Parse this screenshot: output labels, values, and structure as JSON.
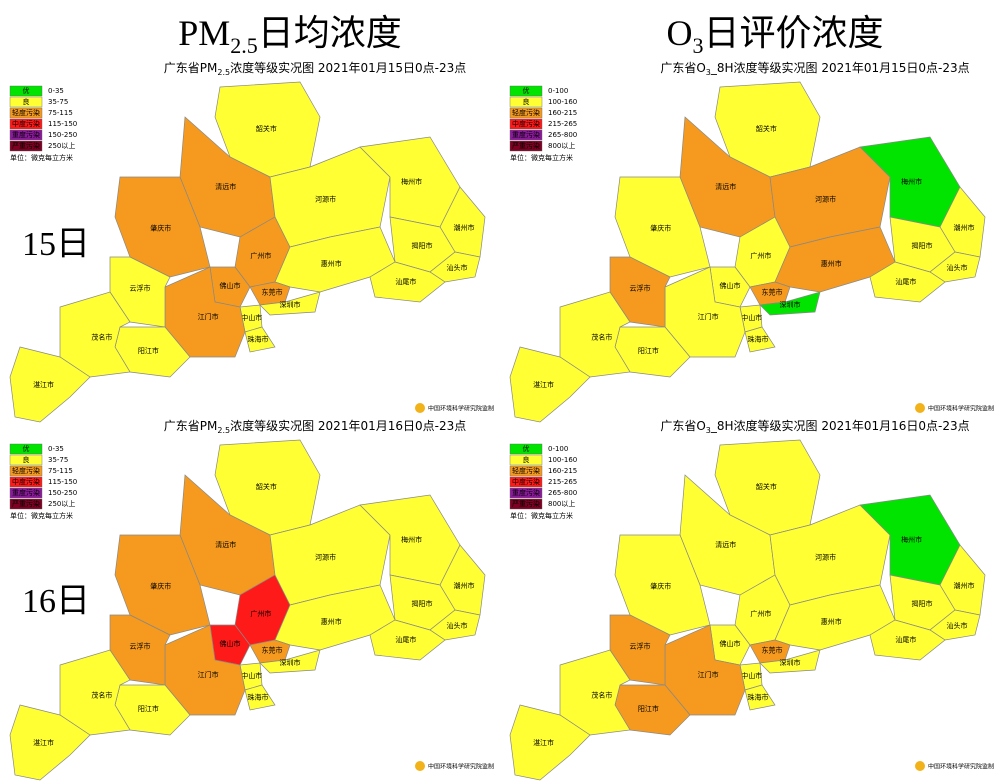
{
  "header": {
    "pm_title": [
      "PM",
      "2.5",
      "日均浓度"
    ],
    "o3_title": [
      "O",
      "3",
      "日评价浓度"
    ]
  },
  "row_labels": [
    "15日",
    "16日"
  ],
  "legend": {
    "levels": [
      {
        "name": "优",
        "color": "#00e400"
      },
      {
        "name": "良",
        "color": "#ffff33"
      },
      {
        "name": "轻度污染",
        "color": "#f59a1e"
      },
      {
        "name": "中度污染",
        "color": "#ff1a1a"
      },
      {
        "name": "重度污染",
        "color": "#8a1a9a"
      },
      {
        "name": "严重污染",
        "color": "#7e0023"
      }
    ],
    "unit": "单位：微克每立方米"
  },
  "cities": [
    "韶关市",
    "清远市",
    "肇庆市",
    "广州市",
    "佛山市",
    "河源市",
    "梅州市",
    "潮州市",
    "揭阳市",
    "汕头市",
    "惠州市",
    "汕尾市",
    "东莞市",
    "深圳市",
    "中山市",
    "珠海市",
    "江门市",
    "云浮市",
    "阳江市",
    "茂名市",
    "湛江市"
  ],
  "credit": "中国环境科学研究院监制",
  "maps": [
    {
      "title": [
        "广东省PM",
        "2.5",
        "浓度等级实况图  2021年01月15日0点-23点"
      ],
      "ranges": [
        "0-35",
        "35-75",
        "75-115",
        "115-150",
        "150-250",
        "250以上"
      ],
      "levels": [
        1,
        2,
        2,
        2,
        2,
        1,
        1,
        1,
        1,
        1,
        1,
        1,
        2,
        1,
        1,
        1,
        2,
        1,
        1,
        1,
        1
      ]
    },
    {
      "title": [
        "广东省O",
        "3",
        "_8H浓度等级实况图  2021年01月15日0点-23点"
      ],
      "ranges": [
        "0-100",
        "100-160",
        "160-215",
        "215-265",
        "265-800",
        "800以上"
      ],
      "levels": [
        1,
        2,
        1,
        1,
        1,
        2,
        0,
        1,
        1,
        1,
        2,
        1,
        2,
        0,
        1,
        1,
        1,
        2,
        1,
        1,
        1
      ]
    },
    {
      "title": [
        "广东省PM",
        "2.5",
        "浓度等级实况图  2021年01月16日0点-23点"
      ],
      "ranges": [
        "0-35",
        "35-75",
        "75-115",
        "115-150",
        "150-250",
        "250以上"
      ],
      "levels": [
        1,
        2,
        2,
        3,
        3,
        1,
        1,
        1,
        1,
        1,
        1,
        1,
        2,
        1,
        1,
        1,
        2,
        2,
        1,
        1,
        1
      ]
    },
    {
      "title": [
        "广东省O",
        "3",
        "_8H浓度等级实况图  2021年01月16日0点-23点"
      ],
      "ranges": [
        "0-100",
        "100-160",
        "160-215",
        "215-265",
        "265-800",
        "800以上"
      ],
      "levels": [
        1,
        1,
        1,
        1,
        1,
        1,
        0,
        1,
        1,
        1,
        1,
        1,
        2,
        1,
        1,
        1,
        2,
        2,
        2,
        1,
        1
      ]
    }
  ]
}
